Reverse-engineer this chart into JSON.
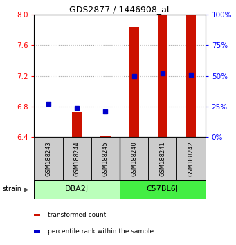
{
  "title": "GDS2877 / 1446908_at",
  "samples": [
    "GSM188243",
    "GSM188244",
    "GSM188245",
    "GSM188240",
    "GSM188241",
    "GSM188242"
  ],
  "group_info": [
    {
      "name": "DBA2J",
      "start": 0,
      "end": 3,
      "color": "#bbffbb"
    },
    {
      "name": "C57BL6J",
      "start": 3,
      "end": 6,
      "color": "#44ee44"
    }
  ],
  "transformed_counts": [
    6.4,
    6.73,
    6.42,
    7.84,
    8.0,
    8.0
  ],
  "percentile_ranks": [
    27,
    24,
    21,
    50,
    52,
    51
  ],
  "bar_bottom": 6.4,
  "ylim_left": [
    6.4,
    8.0
  ],
  "ylim_right": [
    0,
    100
  ],
  "yticks_left": [
    6.4,
    6.8,
    7.2,
    7.6,
    8.0
  ],
  "yticks_right": [
    0,
    25,
    50,
    75,
    100
  ],
  "bar_color": "#cc1100",
  "dot_color": "#0000cc",
  "grid_dotted": [
    6.8,
    7.2,
    7.6
  ],
  "sample_bg": "#cccccc",
  "bar_width": 0.35,
  "legend_items": [
    "transformed count",
    "percentile rank within the sample"
  ],
  "legend_colors": [
    "#cc1100",
    "#0000cc"
  ]
}
